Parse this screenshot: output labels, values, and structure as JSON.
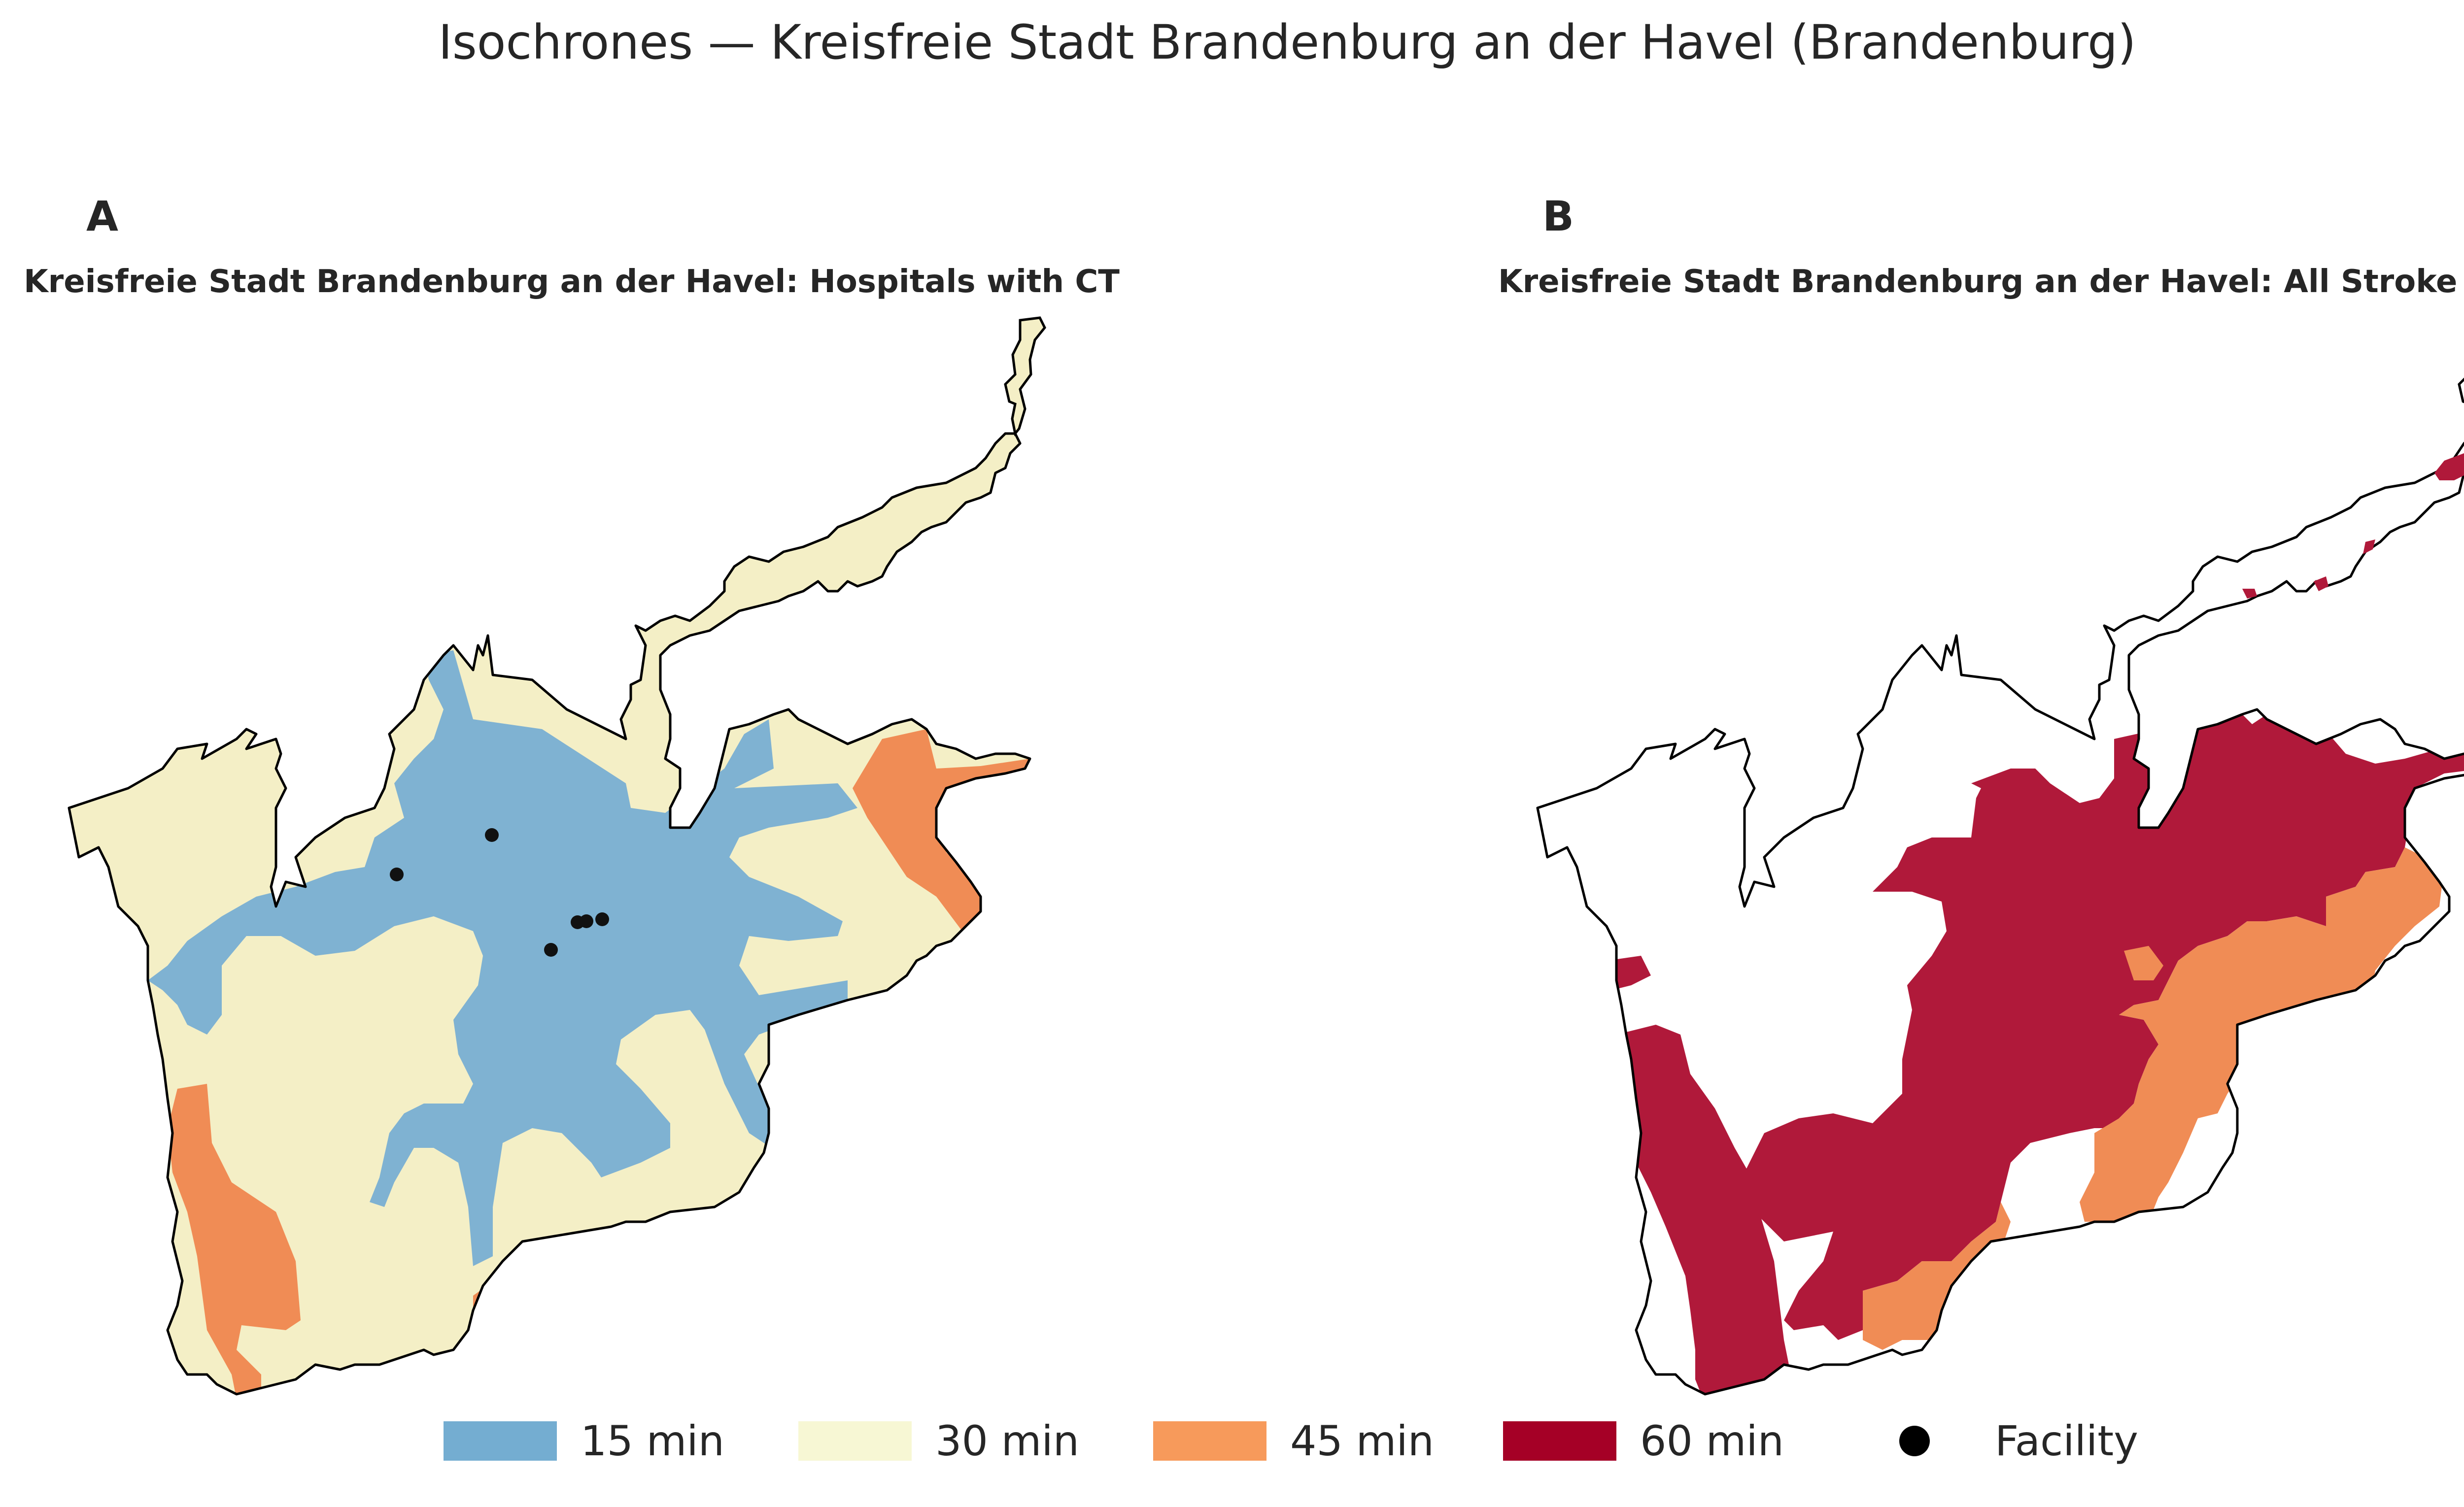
{
  "figure": {
    "title": "Isochrones — Kreisfreie Stadt Brandenburg an der Havel (Brandenburg)"
  },
  "panels": [
    {
      "letter": "A",
      "title": "Kreisfreie Stadt Brandenburg an der Havel: Hospitals with CT",
      "facilities_shown": 6
    },
    {
      "letter": "B",
      "title": "Kreisfreie Stadt Brandenburg an der Havel: All Stroke Units",
      "facilities_shown": 0
    }
  ],
  "legend": {
    "items": [
      {
        "label": "15 min",
        "color": "#74add1",
        "kind": "swatch"
      },
      {
        "label": "30 min",
        "color": "#f7f7d4",
        "kind": "swatch"
      },
      {
        "label": "45 min",
        "color": "#f79a5b",
        "kind": "swatch"
      },
      {
        "label": "60 min",
        "color": "#a50026",
        "kind": "swatch"
      },
      {
        "label": "Facility",
        "color": "#000000",
        "kind": "dot"
      }
    ]
  },
  "colors": {
    "min15": "#7fb2d2",
    "min30": "#f4efc6",
    "min45": "#f08c55",
    "min60": "#b0193a",
    "outline": "#000000"
  }
}
